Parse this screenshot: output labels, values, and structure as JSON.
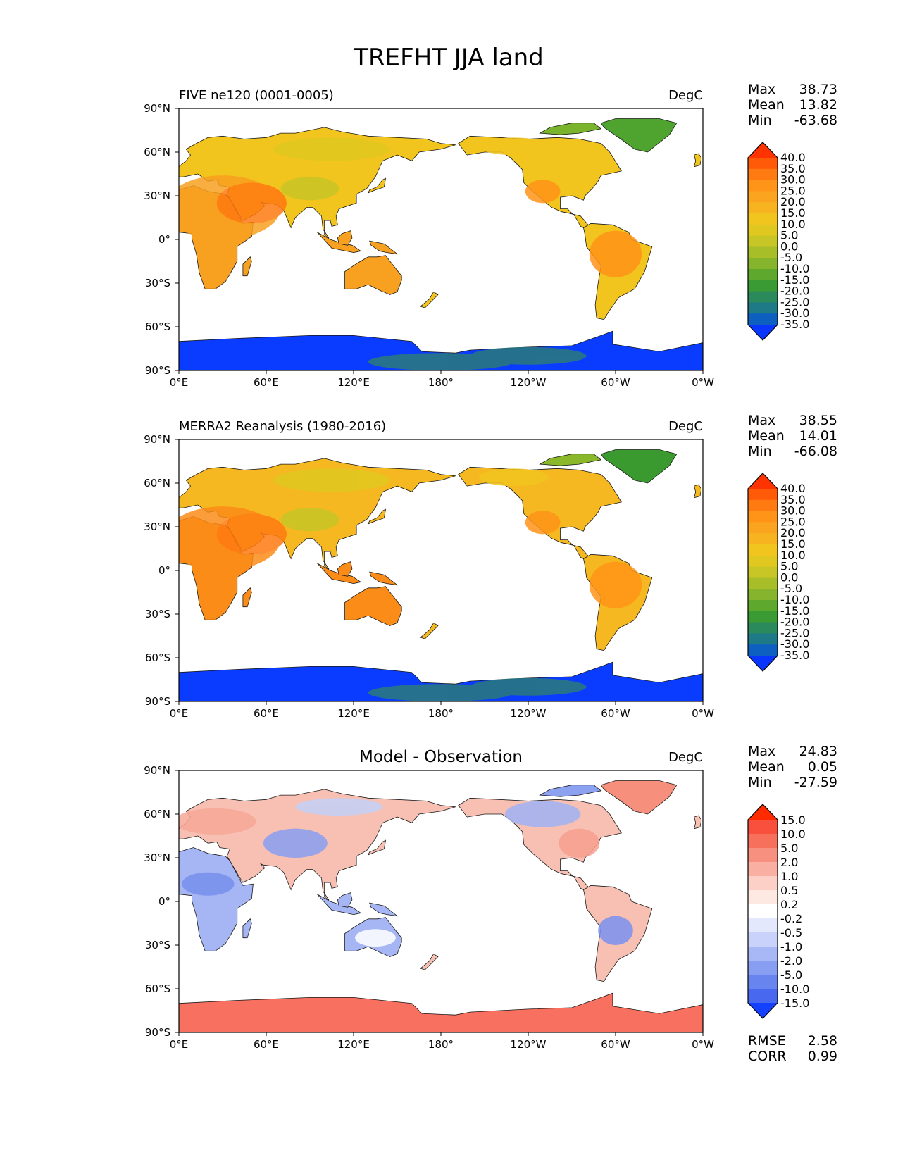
{
  "chart_data": {
    "type": "heatmap",
    "title": "TREFHT JJA land",
    "panels": [
      {
        "subtitle": "FIVE ne120 (0001-0005)",
        "units": "DegC",
        "stats": [
          {
            "label": "Max",
            "value": "38.73"
          },
          {
            "label": "Mean",
            "value": "13.82"
          },
          {
            "label": "Min",
            "value": "-63.68"
          }
        ],
        "colorbar": {
          "levels": [
            "40.0",
            "35.0",
            "30.0",
            "25.0",
            "20.0",
            "15.0",
            "10.0",
            "5.0",
            "0.0",
            "-5.0",
            "-10.0",
            "-15.0",
            "-20.0",
            "-25.0",
            "-30.0",
            "-35.0"
          ],
          "colors": [
            "#ff3300",
            "#ff5a08",
            "#ff7a10",
            "#ff9418",
            "#fba420",
            "#f8b420",
            "#f2c41e",
            "#e0c820",
            "#c8c626",
            "#a8be28",
            "#86b42c",
            "#5ea82e",
            "#3a9a34",
            "#2a8a5c",
            "#1e7a86",
            "#0e60c0",
            "#0836ff"
          ]
        },
        "regions": {
          "tropics": "#f8a020",
          "midlat": "#f2c41e",
          "arctic": "#7ab32c",
          "greenland": "#4ea42e",
          "antarctica": "#0a3cff",
          "antarctic_coast": "#2a7a7a"
        }
      },
      {
        "subtitle": "MERRA2 Reanalysis (1980-2016)",
        "units": "DegC",
        "stats": [
          {
            "label": "Max",
            "value": "38.55"
          },
          {
            "label": "Mean",
            "value": "14.01"
          },
          {
            "label": "Min",
            "value": "-66.08"
          }
        ],
        "colorbar": {
          "levels": [
            "40.0",
            "35.0",
            "30.0",
            "25.0",
            "20.0",
            "15.0",
            "10.0",
            "5.0",
            "0.0",
            "-5.0",
            "-10.0",
            "-15.0",
            "-20.0",
            "-25.0",
            "-30.0",
            "-35.0"
          ],
          "colors": [
            "#ff3300",
            "#ff5a08",
            "#ff7a10",
            "#ff9418",
            "#fba420",
            "#f8b420",
            "#f2c41e",
            "#e0c820",
            "#c8c626",
            "#a8be28",
            "#86b42c",
            "#5ea82e",
            "#3a9a34",
            "#2a8a5c",
            "#1e7a86",
            "#0e60c0",
            "#0836ff"
          ]
        },
        "regions": {
          "tropics": "#fb8c18",
          "midlat": "#f5b820",
          "arctic": "#8ab82a",
          "greenland": "#3a9a30",
          "antarctica": "#0a3cff",
          "antarctic_coast": "#2a7a7a"
        }
      },
      {
        "subtitle": "Model - Observation",
        "units": "DegC",
        "stats": [
          {
            "label": "Max",
            "value": "24.83"
          },
          {
            "label": "Mean",
            "value": "0.05"
          },
          {
            "label": "Min",
            "value": "-27.59"
          }
        ],
        "colorbar": {
          "levels": [
            "15.0",
            "10.0",
            "5.0",
            "2.0",
            "1.0",
            "0.5",
            "0.2",
            "-0.2",
            "-0.5",
            "-1.0",
            "-2.0",
            "-5.0",
            "-10.0",
            "-15.0"
          ],
          "colors": [
            "#ff2a00",
            "#f8503c",
            "#f6705c",
            "#f7907e",
            "#f9b0a2",
            "#fcd0c6",
            "#fde8e2",
            "#ffffff",
            "#e4e8fc",
            "#c8d2fa",
            "#a8b8f6",
            "#889ef2",
            "#6884ee",
            "#4868f0",
            "#1440ff"
          ]
        },
        "regions": {
          "tropics": "#a6b6f4",
          "midlat": "#f8c0b2",
          "arctic": "#8ca2f0",
          "greenland": "#f6907c",
          "antarctica": "#f87060",
          "antarctic_coast": "#f6705c"
        },
        "extra_stats": [
          {
            "label": "RMSE",
            "value": "2.58"
          },
          {
            "label": "CORR",
            "value": "0.99"
          }
        ]
      }
    ],
    "x_ticks": [
      "0°E",
      "60°E",
      "120°E",
      "180°",
      "120°W",
      "60°W",
      "0°W"
    ],
    "y_ticks": [
      "90°N",
      "60°N",
      "30°N",
      "0°",
      "30°S",
      "60°S",
      "90°S"
    ],
    "xlim": [
      0,
      360
    ],
    "ylim": [
      -90,
      90
    ],
    "central_longitude": 180
  }
}
